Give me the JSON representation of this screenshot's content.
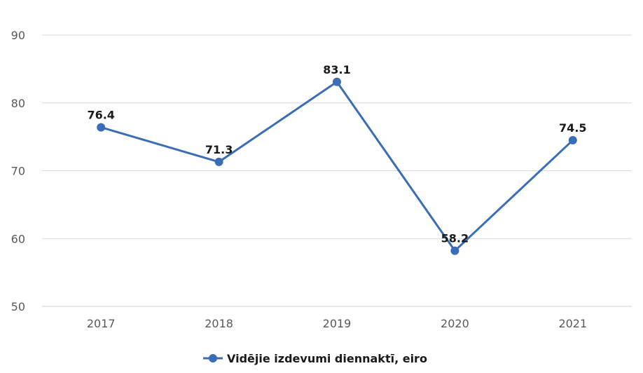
{
  "chart_data": {
    "type": "line",
    "categories": [
      "2017",
      "2018",
      "2019",
      "2020",
      "2021"
    ],
    "series": [
      {
        "name": "Vidējie izdevumi diennaktī, eiro",
        "values": [
          76.4,
          71.3,
          83.1,
          58.2,
          74.5
        ],
        "color": "#3a6db5"
      }
    ],
    "yticks": [
      "50",
      "60",
      "70",
      "80",
      "90"
    ],
    "ylim": [
      50,
      90
    ],
    "data_labels": [
      "76.4",
      "71.3",
      "83.1",
      "58.2",
      "74.5"
    ],
    "grid": true,
    "legend_position": "bottom-center",
    "colors": {
      "line": "#3a6db5",
      "grid": "#d9d9d9",
      "text": "#595959"
    }
  }
}
